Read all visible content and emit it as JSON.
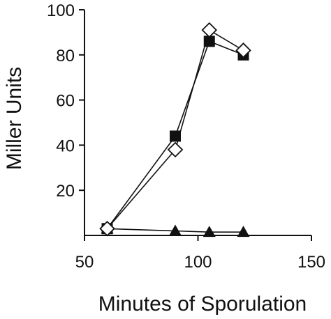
{
  "chart_data": {
    "type": "line",
    "title": "",
    "xlabel": "Minutes of Sporulation",
    "ylabel": "Miller Units",
    "xlim": [
      50,
      150
    ],
    "ylim": [
      0,
      100
    ],
    "xticks": [
      50,
      100,
      150
    ],
    "yticks": [
      20,
      40,
      60,
      80,
      100
    ],
    "grid": false,
    "legend": "none",
    "series": [
      {
        "marker": "diamond-open",
        "color": "#111111",
        "x": [
          60,
          90,
          105,
          120
        ],
        "y": [
          3,
          38,
          91,
          82
        ]
      },
      {
        "marker": "square-filled",
        "color": "#111111",
        "x": [
          60,
          90,
          105,
          120
        ],
        "y": [
          3,
          44,
          86,
          80
        ]
      },
      {
        "marker": "triangle-filled",
        "color": "#111111",
        "x": [
          60,
          90,
          105,
          120
        ],
        "y": [
          3,
          2,
          1.5,
          1.5
        ]
      }
    ]
  }
}
